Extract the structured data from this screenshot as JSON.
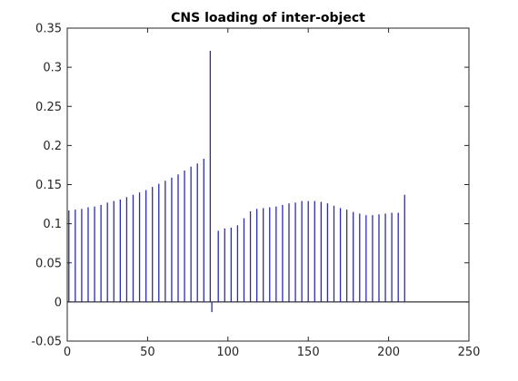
{
  "chart_data": {
    "type": "line",
    "title": "CNS loading of inter-object",
    "xlabel": "",
    "ylabel": "",
    "xlim": [
      0,
      250
    ],
    "ylim": [
      -0.05,
      0.35
    ],
    "x_ticks": [
      0,
      50,
      100,
      150,
      200,
      250
    ],
    "x_tick_labels": [
      "0",
      "50",
      "100",
      "150",
      "200",
      "250"
    ],
    "y_ticks": [
      -0.05,
      0,
      0.05,
      0.1,
      0.15,
      0.2,
      0.25,
      0.3,
      0.35
    ],
    "y_tick_labels": [
      "-0.05",
      "0",
      "0.05",
      "0.1",
      "0.15",
      "0.2",
      "0.25",
      "0.3",
      "0.35"
    ],
    "grid": false,
    "legend": "none",
    "line_color": "#2b2bb0",
    "series": [
      {
        "x": [
          0,
          1,
          5,
          9,
          13,
          17,
          21,
          25,
          29,
          33,
          37,
          41,
          45,
          49,
          53,
          57,
          61,
          65,
          69,
          73,
          77,
          81,
          85,
          89,
          90,
          94,
          98,
          102,
          106,
          110,
          114,
          118,
          122,
          126,
          130,
          134,
          138,
          142,
          146,
          150,
          154,
          158,
          162,
          166,
          170,
          174,
          178,
          182,
          186,
          190,
          194,
          198,
          202,
          206,
          210
        ],
        "values": [
          0,
          0.117,
          0.118,
          0.119,
          0.121,
          0.122,
          0.124,
          0.127,
          0.129,
          0.131,
          0.134,
          0.137,
          0.14,
          0.143,
          0.147,
          0.151,
          0.155,
          0.159,
          0.163,
          0.168,
          0.173,
          0.177,
          0.183,
          0.321,
          -0.013,
          0.091,
          0.094,
          0.095,
          0.098,
          0.107,
          0.116,
          0.119,
          0.12,
          0.121,
          0.122,
          0.124,
          0.126,
          0.127,
          0.129,
          0.129,
          0.129,
          0.128,
          0.126,
          0.123,
          0.12,
          0.118,
          0.115,
          0.113,
          0.111,
          0.111,
          0.112,
          0.113,
          0.114,
          0.114,
          0.137
        ]
      }
    ]
  }
}
